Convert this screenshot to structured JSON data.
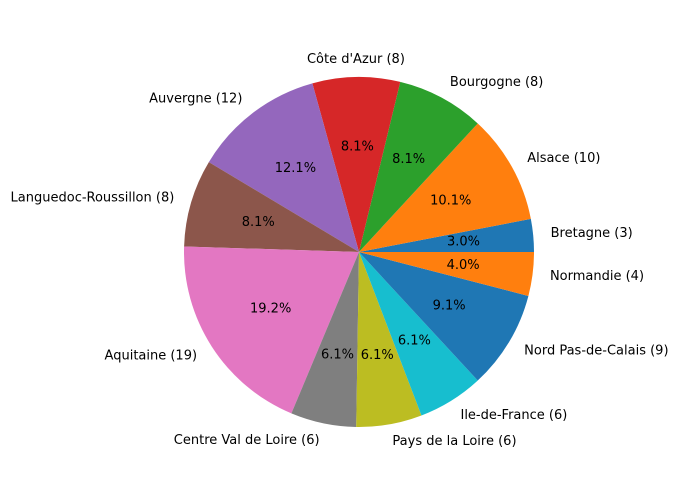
{
  "chart_data": {
    "type": "pie",
    "slices": [
      {
        "label": "Bretagne (3)",
        "value": 3,
        "pct": "3.0%",
        "color": "#1f77b4"
      },
      {
        "label": "Alsace (10)",
        "value": 10,
        "pct": "10.1%",
        "color": "#ff7f0e"
      },
      {
        "label": "Bourgogne (8)",
        "value": 8,
        "pct": "8.1%",
        "color": "#2ca02c"
      },
      {
        "label": "Côte d'Azur (8)",
        "value": 8,
        "pct": "8.1%",
        "color": "#d62728"
      },
      {
        "label": "Auvergne (12)",
        "value": 12,
        "pct": "12.1%",
        "color": "#9467bd"
      },
      {
        "label": "Languedoc-Roussillon (8)",
        "value": 8,
        "pct": "8.1%",
        "color": "#8c564b"
      },
      {
        "label": "Aquitaine (19)",
        "value": 19,
        "pct": "19.2%",
        "color": "#e377c2"
      },
      {
        "label": "Centre Val de Loire (6)",
        "value": 6,
        "pct": "6.1%",
        "color": "#7f7f7f"
      },
      {
        "label": "Pays de la Loire (6)",
        "value": 6,
        "pct": "6.1%",
        "color": "#bcbd22"
      },
      {
        "label": "Ile-de-France (6)",
        "value": 6,
        "pct": "6.1%",
        "color": "#17becf"
      },
      {
        "label": "Nord Pas-de-Calais (9)",
        "value": 9,
        "pct": "9.1%",
        "color": "#1f77b4"
      },
      {
        "label": "Normandie (4)",
        "value": 4,
        "pct": "4.0%",
        "color": "#ff7f0e"
      }
    ],
    "start_angle_deg": 0,
    "direction": "counterclockwise"
  }
}
